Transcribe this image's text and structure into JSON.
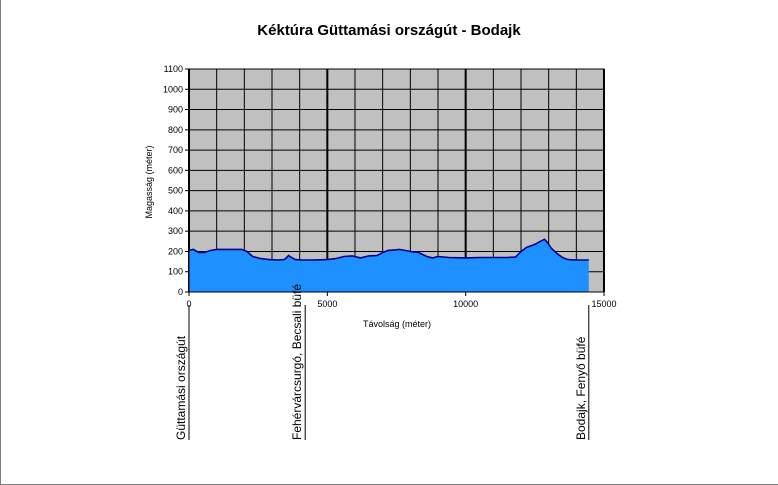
{
  "chart_data": {
    "type": "area",
    "title": "Kéktúra Güttamási országút - Bodajk",
    "xlabel": "Távolság (méter)",
    "ylabel": "Magasság (méter)",
    "xlim": [
      0,
      15000
    ],
    "ylim": [
      0,
      1100
    ],
    "x_ticks": [
      "0",
      "5000",
      "10000",
      "15000"
    ],
    "y_ticks": [
      "0",
      "100",
      "200",
      "300",
      "400",
      "500",
      "600",
      "700",
      "800",
      "900",
      "1000",
      "1100"
    ],
    "grid": true,
    "fill_color": "#1e90ff",
    "line_color": "#00008b",
    "plot_background": "#c0c0c0",
    "x": [
      0,
      150,
      350,
      550,
      800,
      1000,
      1300,
      1600,
      1900,
      2100,
      2300,
      2600,
      2900,
      3200,
      3450,
      3600,
      3700,
      3850,
      4100,
      4500,
      5000,
      5300,
      5600,
      5900,
      6200,
      6500,
      6800,
      7000,
      7200,
      7500,
      7600,
      7800,
      8000,
      8300,
      8600,
      8800,
      9000,
      9400,
      10000,
      10500,
      11000,
      11500,
      11800,
      12000,
      12200,
      12500,
      12700,
      12850,
      12950,
      13100,
      13300,
      13500,
      13700,
      14000,
      14450
    ],
    "values": [
      205,
      210,
      195,
      195,
      205,
      210,
      210,
      210,
      210,
      200,
      175,
      165,
      160,
      158,
      160,
      180,
      170,
      160,
      158,
      158,
      160,
      165,
      175,
      178,
      168,
      178,
      180,
      195,
      205,
      208,
      210,
      205,
      200,
      195,
      175,
      168,
      175,
      170,
      168,
      170,
      170,
      170,
      172,
      200,
      220,
      235,
      250,
      260,
      245,
      215,
      190,
      170,
      160,
      158,
      158
    ],
    "annotations": [
      {
        "x": 0,
        "label": "Güttamási országút"
      },
      {
        "x": 4200,
        "label": "Fehérvárcsurgó, Becsali büfé"
      },
      {
        "x": 14450,
        "label": "Bodajk, Fenyő büfé"
      }
    ]
  }
}
